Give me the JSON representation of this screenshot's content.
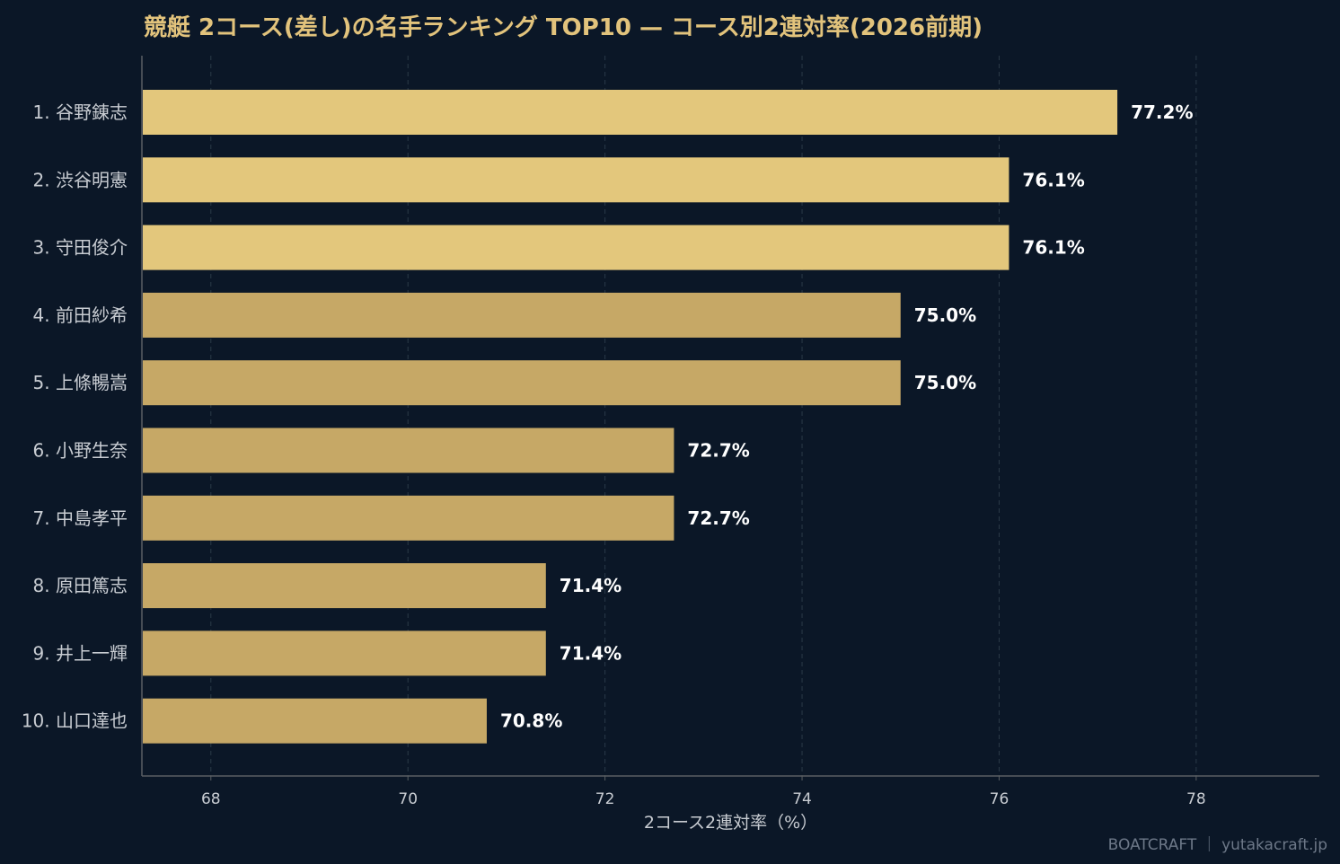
{
  "chart_data": {
    "type": "bar",
    "orientation": "horizontal",
    "title": "競艇 2コース(差し)の名手ランキング TOP10 — コース別2連対率(2026前期)",
    "xlabel": "2コース2連対率（%）",
    "ylabel": "",
    "xlim": [
      67.3,
      79.25
    ],
    "xticks": [
      68,
      70,
      72,
      74,
      76,
      78
    ],
    "grid": "vertical-dashed",
    "categories": [
      "1. 谷野錬志",
      "2. 渋谷明憲",
      "3. 守田俊介",
      "4. 前田紗希",
      "5. 上條暢嵩",
      "6. 小野生奈",
      "7. 中島孝平",
      "8. 原田篤志",
      "9. 井上一輝",
      "10. 山口達也"
    ],
    "values": [
      77.2,
      76.1,
      76.1,
      75.0,
      75.0,
      72.7,
      72.7,
      71.4,
      71.4,
      70.8
    ],
    "value_labels": [
      "77.2%",
      "76.1%",
      "76.1%",
      "75.0%",
      "75.0%",
      "72.7%",
      "72.7%",
      "71.4%",
      "71.4%",
      "70.8%"
    ],
    "colors": {
      "top3": "#e3c77c",
      "rest": "#c6a866",
      "background": "#0b1727",
      "title": "#e2c37c",
      "axis_text": "#c8ccd2",
      "value_text": "#ffffff",
      "grid": "#2b3a48",
      "axis_line": "#5a5f63"
    }
  },
  "credit": "BOATCRAFT ｜ yutakacraft.jp"
}
